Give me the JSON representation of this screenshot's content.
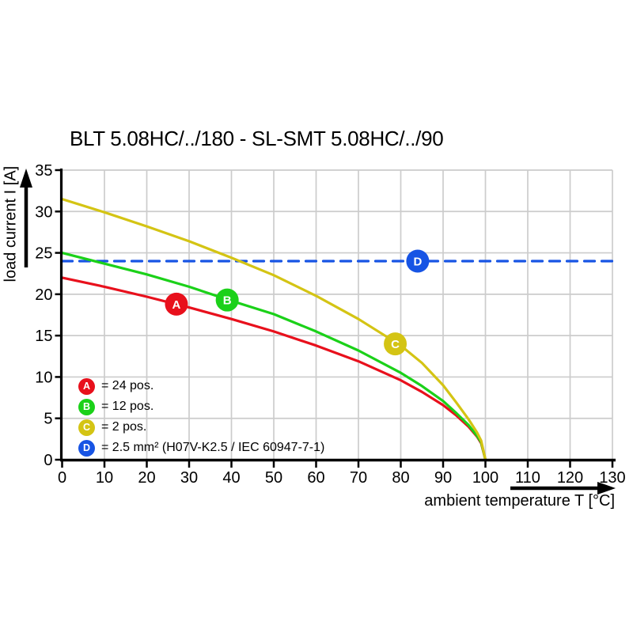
{
  "chart_data": {
    "type": "line",
    "title": "BLT 5.08HC/../180 - SL-SMT 5.08HC/../90",
    "xlabel": "ambient temperature T [°C]",
    "ylabel": "load current I [A]",
    "xlim": [
      0,
      130
    ],
    "ylim": [
      0,
      35
    ],
    "x_ticks": [
      0,
      10,
      20,
      30,
      40,
      50,
      60,
      70,
      80,
      90,
      100,
      110,
      120,
      130
    ],
    "y_ticks": [
      0,
      5,
      10,
      15,
      20,
      25,
      30,
      35
    ],
    "grid": true,
    "grid_color": "#cccccc",
    "axis_color": "#000000",
    "legend_position": "inside-bottom-left",
    "series": [
      {
        "id": "A",
        "name": "24 pos.",
        "legend_label": "= 24 pos.",
        "color": "#e8101c",
        "style": "solid",
        "marker": {
          "t": 27,
          "i": 18.8
        },
        "points": [
          [
            0,
            22
          ],
          [
            10,
            20.9
          ],
          [
            20,
            19.7
          ],
          [
            30,
            18.4
          ],
          [
            40,
            17
          ],
          [
            50,
            15.5
          ],
          [
            60,
            13.8
          ],
          [
            70,
            11.9
          ],
          [
            80,
            9.6
          ],
          [
            85,
            8.2
          ],
          [
            90,
            6.6
          ],
          [
            93,
            5.4
          ],
          [
            96,
            4
          ],
          [
            98,
            2.8
          ],
          [
            99,
            2
          ],
          [
            100,
            0
          ]
        ]
      },
      {
        "id": "B",
        "name": "12 pos.",
        "legend_label": "= 12 pos.",
        "color": "#1bd119",
        "style": "solid",
        "marker": {
          "t": 39,
          "i": 19.3
        },
        "points": [
          [
            0,
            25
          ],
          [
            10,
            23.7
          ],
          [
            20,
            22.4
          ],
          [
            30,
            20.9
          ],
          [
            40,
            19.2
          ],
          [
            50,
            17.6
          ],
          [
            60,
            15.5
          ],
          [
            70,
            13.2
          ],
          [
            80,
            10.5
          ],
          [
            85,
            8.9
          ],
          [
            90,
            7.1
          ],
          [
            93,
            5.7
          ],
          [
            96,
            4.2
          ],
          [
            98,
            2.9
          ],
          [
            99,
            2.1
          ],
          [
            100,
            0
          ]
        ]
      },
      {
        "id": "C",
        "name": "2 pos.",
        "legend_label": "= 2 pos.",
        "color": "#d4c414",
        "style": "solid",
        "marker": {
          "t": 78.7,
          "i": 14
        },
        "points": [
          [
            0,
            31.5
          ],
          [
            10,
            29.9
          ],
          [
            20,
            28.2
          ],
          [
            30,
            26.4
          ],
          [
            40,
            24.4
          ],
          [
            50,
            22.3
          ],
          [
            60,
            19.8
          ],
          [
            70,
            17
          ],
          [
            80,
            13.8
          ],
          [
            85,
            11.7
          ],
          [
            90,
            9
          ],
          [
            93,
            7
          ],
          [
            96,
            4.9
          ],
          [
            98,
            3.3
          ],
          [
            99,
            2.3
          ],
          [
            100,
            0
          ]
        ]
      },
      {
        "id": "D",
        "name": "2.5 mm² (H07V-K2.5 / IEC 60947-7-1)",
        "legend_label": "= 2.5 mm² (H07V-K2.5 / IEC 60947-7-1)",
        "color": "#1754e4",
        "style": "dashed",
        "marker": {
          "t": 84,
          "i": 24
        },
        "points": [
          [
            0,
            24
          ],
          [
            130,
            24
          ]
        ]
      }
    ]
  }
}
